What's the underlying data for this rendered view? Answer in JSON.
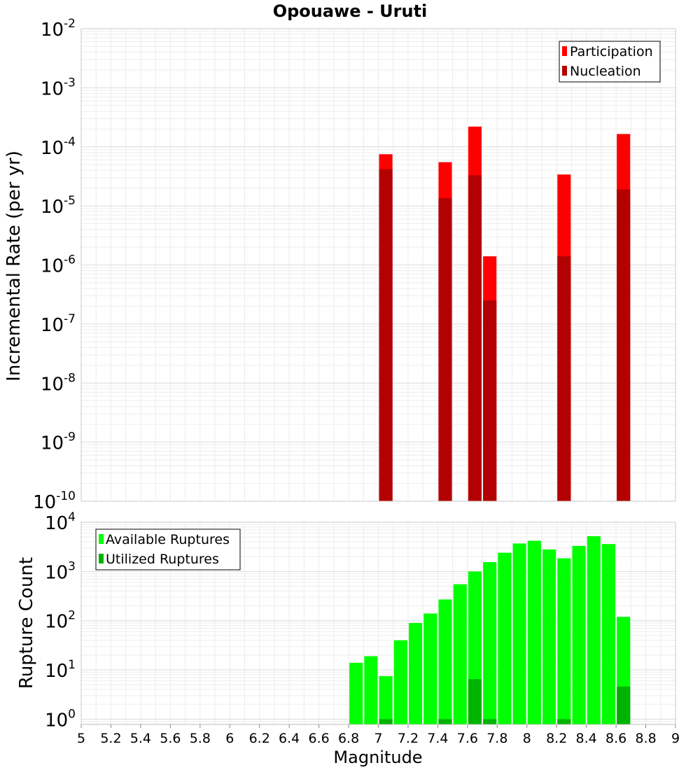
{
  "chart_data": [
    {
      "type": "bar",
      "title": "Opouawe - Uruti",
      "xlabel": "",
      "ylabel": "Incremental Rate (per yr)",
      "xlim": [
        5,
        9
      ],
      "ylim": [
        1e-10,
        0.01
      ],
      "yscale": "log",
      "grid": true,
      "legend_placement": "top-right",
      "bar_width": 0.09,
      "yticks": [
        {
          "base": "10",
          "exp": "-10",
          "value": 1e-10
        },
        {
          "base": "10",
          "exp": "-9",
          "value": 1e-09
        },
        {
          "base": "10",
          "exp": "-8",
          "value": 1e-08
        },
        {
          "base": "10",
          "exp": "-7",
          "value": 1e-07
        },
        {
          "base": "10",
          "exp": "-6",
          "value": 1e-06
        },
        {
          "base": "10",
          "exp": "-5",
          "value": 1e-05
        },
        {
          "base": "10",
          "exp": "-4",
          "value": 0.0001
        },
        {
          "base": "10",
          "exp": "-3",
          "value": 0.001
        },
        {
          "base": "10",
          "exp": "-2",
          "value": 0.01
        }
      ],
      "series": [
        {
          "name": "Participation",
          "color": "#ff0000",
          "x": [
            7.05,
            7.45,
            7.65,
            7.75,
            8.25,
            8.65
          ],
          "values": [
            7.5e-05,
            5.5e-05,
            0.00022,
            1.4e-06,
            3.4e-05,
            0.000165
          ]
        },
        {
          "name": "Nucleation",
          "color": "#b30000",
          "x": [
            7.05,
            7.45,
            7.65,
            7.75,
            8.25,
            8.65
          ],
          "values": [
            4.2e-05,
            1.35e-05,
            3.3e-05,
            2.5e-07,
            1.4e-06,
            1.9e-05
          ]
        }
      ]
    },
    {
      "type": "bar",
      "title": "",
      "xlabel": "Magnitude",
      "ylabel": "Rupture Count",
      "xlim": [
        5,
        9
      ],
      "ylim": [
        0.78,
        10000
      ],
      "yscale": "log",
      "grid": true,
      "legend_placement": "top-left",
      "bar_width": 0.09,
      "xticks": [
        "5",
        "5.2",
        "5.4",
        "5.6",
        "5.8",
        "6",
        "6.2",
        "6.4",
        "6.6",
        "6.8",
        "7",
        "7.2",
        "7.4",
        "7.6",
        "7.8",
        "8",
        "8.2",
        "8.4",
        "8.6",
        "8.8",
        "9"
      ],
      "yticks": [
        {
          "base": "10",
          "exp": "0",
          "value": 1
        },
        {
          "base": "10",
          "exp": "1",
          "value": 10
        },
        {
          "base": "10",
          "exp": "2",
          "value": 100
        },
        {
          "base": "10",
          "exp": "3",
          "value": 1000
        },
        {
          "base": "10",
          "exp": "4",
          "value": 10000
        }
      ],
      "series": [
        {
          "name": "Available Ruptures",
          "color": "#00ff00",
          "x": [
            6.85,
            6.95,
            7.05,
            7.15,
            7.25,
            7.35,
            7.45,
            7.55,
            7.65,
            7.75,
            7.85,
            7.95,
            8.05,
            8.15,
            8.25,
            8.35,
            8.45,
            8.55,
            8.65
          ],
          "values": [
            14,
            19,
            7.5,
            40,
            90,
            140,
            270,
            550,
            1000,
            1550,
            2400,
            3700,
            4200,
            2800,
            1850,
            3300,
            5200,
            3600,
            120
          ]
        },
        {
          "name": "Utilized Ruptures",
          "color": "#00b300",
          "x": [
            7.05,
            7.45,
            7.65,
            7.75,
            8.25,
            8.65
          ],
          "values": [
            1,
            1,
            6.5,
            1,
            1,
            4.6
          ]
        }
      ]
    }
  ]
}
